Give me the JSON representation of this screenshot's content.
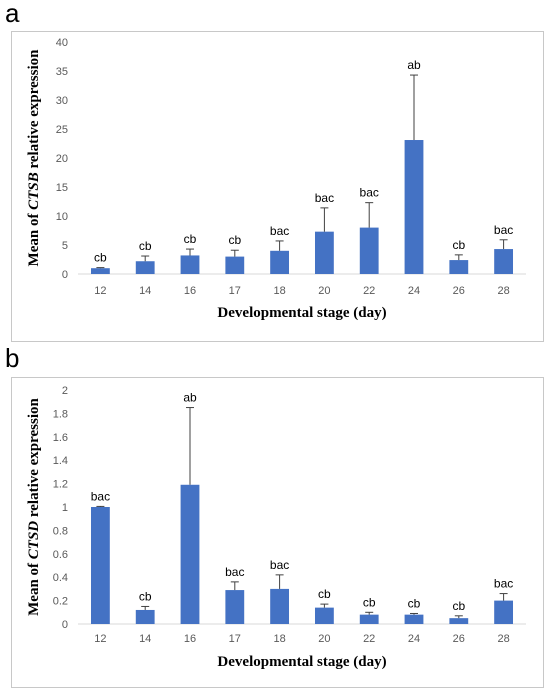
{
  "panels": [
    {
      "letter": "a"
    },
    {
      "letter": "b"
    }
  ],
  "chart_data": [
    {
      "type": "bar",
      "categories": [
        "12",
        "14",
        "16",
        "17",
        "18",
        "20",
        "22",
        "24",
        "26",
        "28"
      ],
      "values": [
        1.0,
        2.2,
        3.2,
        3.0,
        4.0,
        7.3,
        8.0,
        23.1,
        2.4,
        4.3
      ],
      "errors": [
        0.1,
        0.9,
        1.1,
        1.1,
        1.7,
        4.1,
        4.3,
        11.2,
        0.9,
        1.6
      ],
      "significance": [
        "cb",
        "cb",
        "cb",
        "cb",
        "bac",
        "bac",
        "bac",
        "ab",
        "cb",
        "bac"
      ],
      "ylim": [
        0,
        40
      ],
      "yticks": [
        0,
        5,
        10,
        15,
        20,
        25,
        30,
        35,
        40
      ],
      "ytick_labels": [
        "0",
        "5",
        "10",
        "15",
        "20",
        "25",
        "30",
        "35",
        "40"
      ],
      "ylabel_prefix": "Mean of ",
      "ylabel_gene": "CTSB",
      "ylabel_suffix": " relative expression",
      "xlabel": "Developmental stage (day)",
      "grid": false,
      "bar_color": "#4472C4"
    },
    {
      "type": "bar",
      "categories": [
        "12",
        "14",
        "16",
        "17",
        "18",
        "20",
        "22",
        "24",
        "26",
        "28"
      ],
      "values": [
        1.0,
        0.12,
        1.19,
        0.29,
        0.3,
        0.14,
        0.08,
        0.08,
        0.05,
        0.2
      ],
      "errors": [
        0.005,
        0.03,
        0.66,
        0.07,
        0.12,
        0.03,
        0.02,
        0.01,
        0.02,
        0.06
      ],
      "significance": [
        "bac",
        "cb",
        "ab",
        "bac",
        "bac",
        "cb",
        "cb",
        "cb",
        "cb",
        "bac"
      ],
      "ylim": [
        0,
        2
      ],
      "yticks": [
        0,
        0.2,
        0.4,
        0.6,
        0.8,
        1.0,
        1.2,
        1.4,
        1.6,
        1.8,
        2.0
      ],
      "ytick_labels": [
        "0",
        "0.2",
        "0.4",
        "0.6",
        "0.8",
        "1",
        "1.2",
        "1.4",
        "1.6",
        "1.8",
        "2"
      ],
      "ylabel_prefix": "Mean of ",
      "ylabel_gene": "CTSD",
      "ylabel_suffix": " relative expression",
      "xlabel": "Developmental stage (day)",
      "grid": false,
      "bar_color": "#4472C4"
    }
  ]
}
